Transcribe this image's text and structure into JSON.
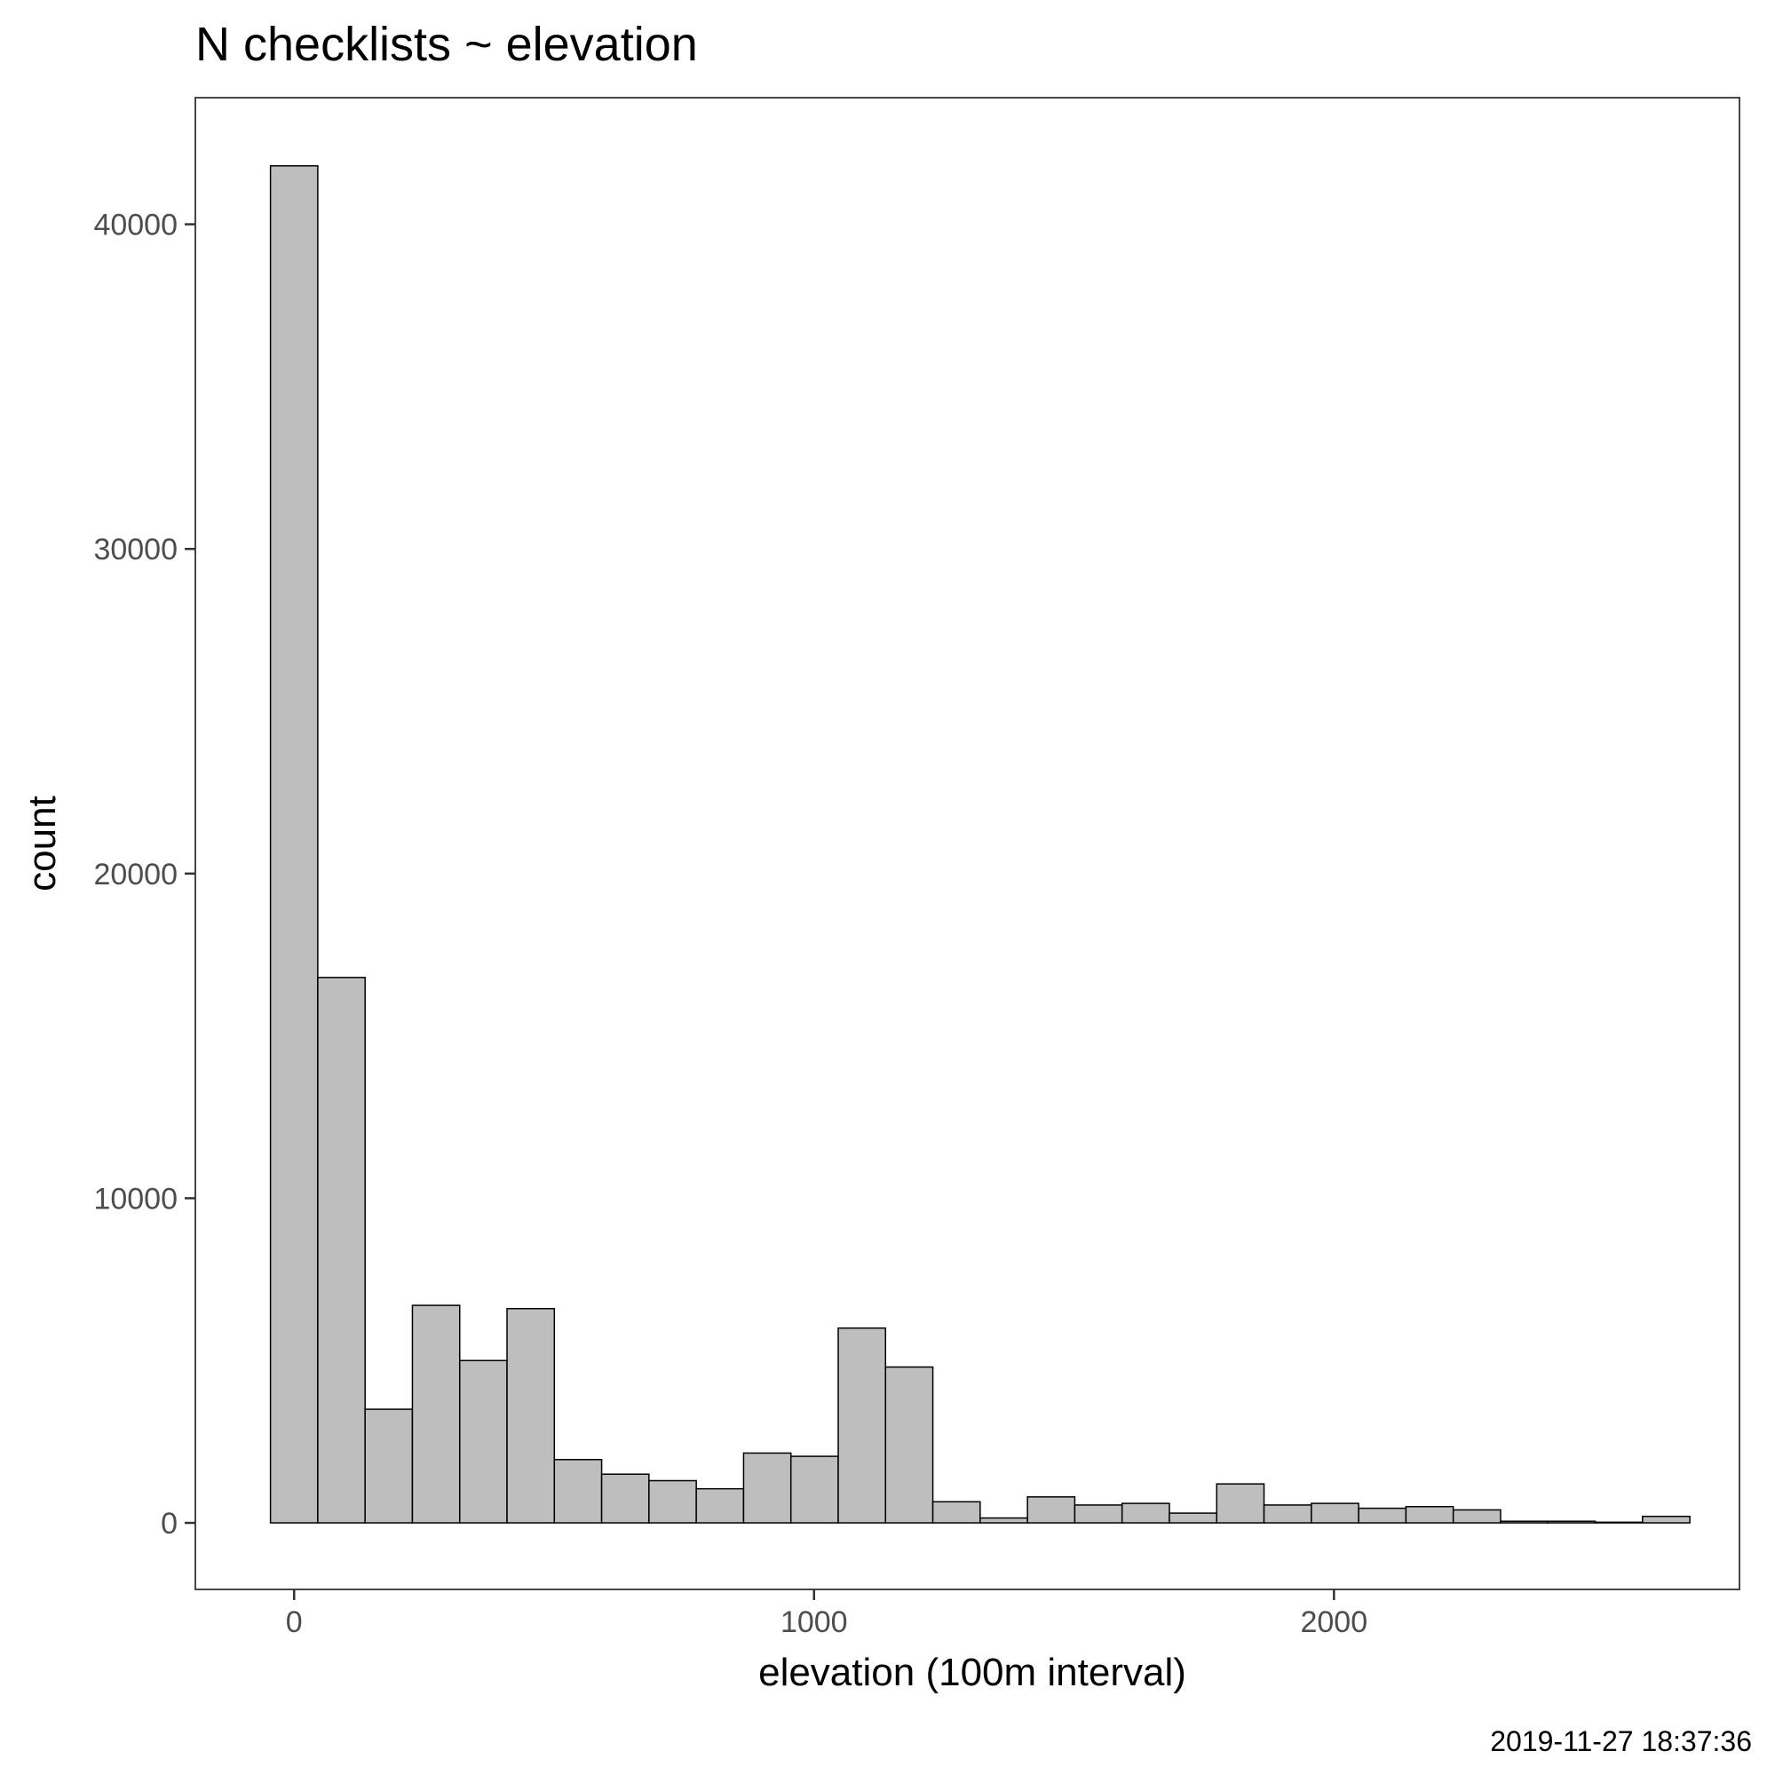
{
  "chart_data": {
    "type": "bar",
    "title": "N checklists ~ elevation",
    "xlabel": "elevation (100m interval)",
    "ylabel": "count",
    "caption": "2019-11-27 18:37:36",
    "bin_width": 91,
    "x": [
      0,
      91,
      182,
      273,
      364,
      455,
      546,
      637,
      728,
      819,
      910,
      1001,
      1092,
      1183,
      1274,
      1365,
      1456,
      1547,
      1638,
      1729,
      1820,
      1911,
      2002,
      2093,
      2184,
      2275,
      2366,
      2457,
      2548,
      2639
    ],
    "values": [
      41800,
      16800,
      3500,
      6700,
      5000,
      6600,
      1950,
      1500,
      1300,
      1050,
      2150,
      2050,
      6000,
      4800,
      650,
      150,
      800,
      550,
      600,
      300,
      1200,
      550,
      600,
      450,
      500,
      400,
      50,
      50,
      20,
      200
    ],
    "xlim": [
      -190,
      2780
    ],
    "ylim": [
      -2050,
      43900
    ],
    "x_ticks": [
      0,
      1000,
      2000
    ],
    "x_tick_labels": [
      "0",
      "1000",
      "2000"
    ],
    "y_ticks": [
      0,
      10000,
      20000,
      30000,
      40000
    ],
    "y_tick_labels": [
      "0",
      "10000",
      "20000",
      "30000",
      "40000"
    ],
    "grid": false,
    "legend": "none",
    "colors": {
      "bar_fill": "#bebebe",
      "bar_stroke": "#000000"
    }
  }
}
